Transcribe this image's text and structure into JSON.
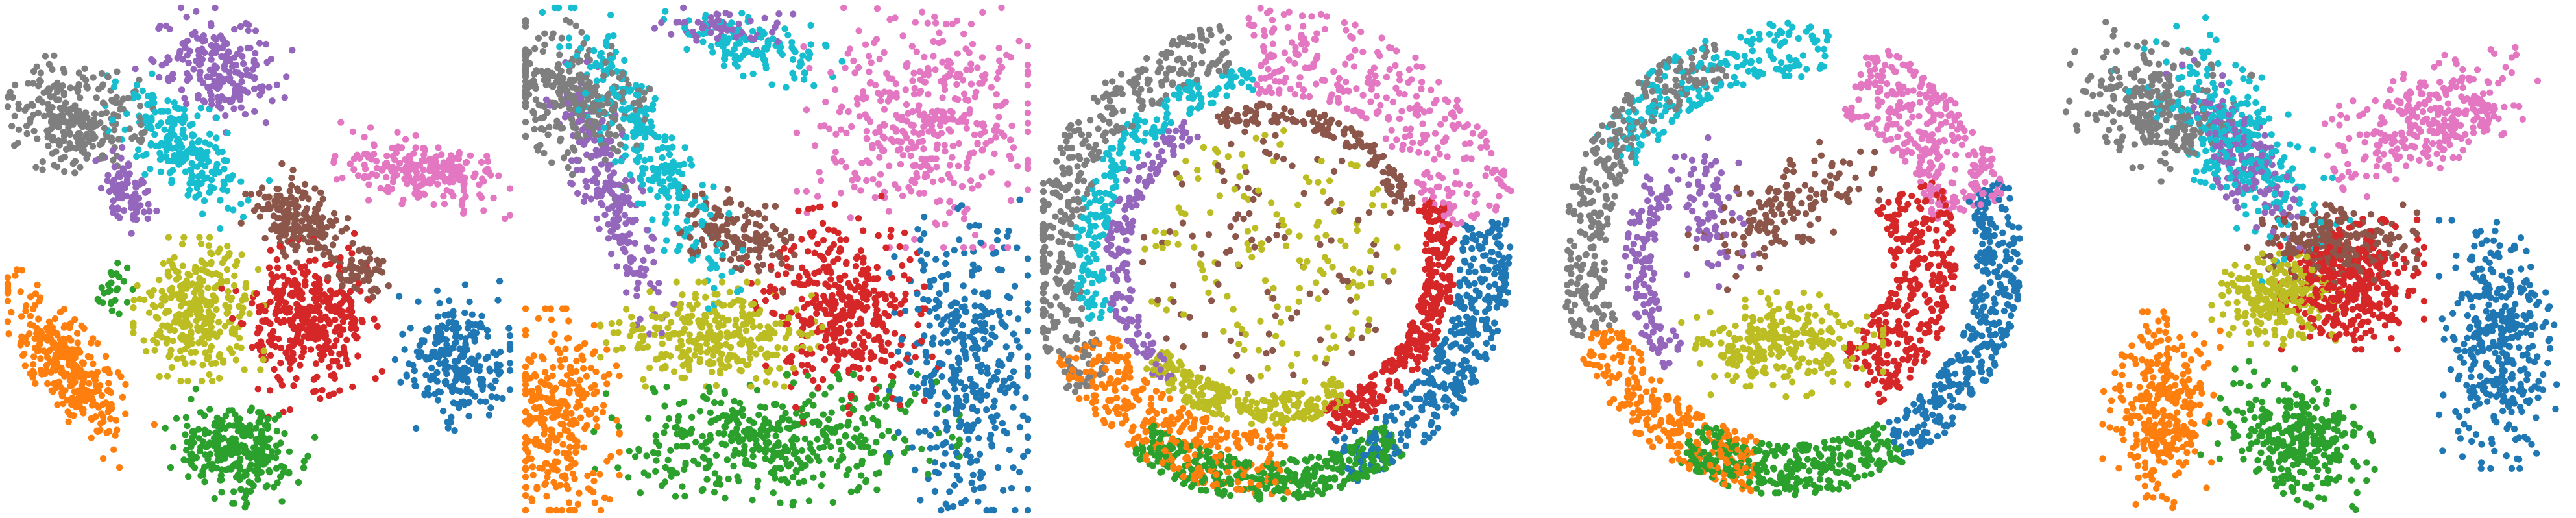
{
  "figure": {
    "description_hidden": ""
  },
  "palette": {
    "c0": "#1f77b4",
    "c1": "#ff7f0e",
    "c2": "#2ca02c",
    "c3": "#d62728",
    "c4": "#9467bd",
    "c5": "#8c564b",
    "c6": "#e377c2",
    "c7": "#7f7f7f",
    "c8": "#bcbd22",
    "c9": "#17becf"
  },
  "chart_data": [
    {
      "type": "scatter",
      "layout": "clusters",
      "xlim": [
        0,
        1
      ],
      "ylim": [
        0,
        1
      ],
      "grid": false,
      "axes_visible": false,
      "legend": "none",
      "clusters": [
        {
          "color_key": "c7",
          "cx": 0.13,
          "cy": 0.78,
          "rx": 0.09,
          "ry": 0.11,
          "angle": 70,
          "n": 260
        },
        {
          "color_key": "c4",
          "cx": 0.42,
          "cy": 0.88,
          "rx": 0.08,
          "ry": 0.11,
          "angle": 60,
          "n": 200
        },
        {
          "color_key": "c9",
          "cx": 0.34,
          "cy": 0.73,
          "rx": 0.07,
          "ry": 0.15,
          "angle": 40,
          "n": 220
        },
        {
          "color_key": "c4",
          "cx": 0.24,
          "cy": 0.63,
          "rx": 0.04,
          "ry": 0.07,
          "angle": 20,
          "n": 80
        },
        {
          "color_key": "c6",
          "cx": 0.83,
          "cy": 0.67,
          "rx": 0.14,
          "ry": 0.055,
          "angle": -10,
          "n": 220
        },
        {
          "color_key": "c5",
          "cx": 0.58,
          "cy": 0.58,
          "rx": 0.09,
          "ry": 0.06,
          "angle": -30,
          "n": 180
        },
        {
          "color_key": "c5",
          "cx": 0.7,
          "cy": 0.47,
          "rx": 0.05,
          "ry": 0.04,
          "angle": 0,
          "n": 60
        },
        {
          "color_key": "c8",
          "cx": 0.38,
          "cy": 0.4,
          "rx": 0.1,
          "ry": 0.11,
          "angle": 0,
          "n": 300
        },
        {
          "color_key": "c3",
          "cx": 0.6,
          "cy": 0.38,
          "rx": 0.11,
          "ry": 0.12,
          "angle": 20,
          "n": 360
        },
        {
          "color_key": "c0",
          "cx": 0.89,
          "cy": 0.3,
          "rx": 0.09,
          "ry": 0.11,
          "angle": 10,
          "n": 240
        },
        {
          "color_key": "c1",
          "cx": 0.12,
          "cy": 0.28,
          "rx": 0.17,
          "ry": 0.06,
          "angle": -55,
          "n": 300
        },
        {
          "color_key": "c2",
          "cx": 0.45,
          "cy": 0.12,
          "rx": 0.11,
          "ry": 0.08,
          "angle": -20,
          "n": 280
        },
        {
          "color_key": "c2",
          "cx": 0.21,
          "cy": 0.44,
          "rx": 0.03,
          "ry": 0.04,
          "angle": 0,
          "n": 25
        }
      ]
    },
    {
      "type": "scatter",
      "layout": "clusters",
      "xlim": [
        0,
        1
      ],
      "ylim": [
        0,
        1
      ],
      "grid": false,
      "axes_visible": false,
      "legend": "none",
      "clusters": [
        {
          "color_key": "c7",
          "cx": 0.09,
          "cy": 0.82,
          "rx": 0.1,
          "ry": 0.14,
          "angle": 60,
          "n": 300
        },
        {
          "color_key": "c9",
          "cx": 0.24,
          "cy": 0.72,
          "rx": 0.06,
          "ry": 0.26,
          "angle": 30,
          "n": 280
        },
        {
          "color_key": "c4",
          "cx": 0.17,
          "cy": 0.62,
          "rx": 0.05,
          "ry": 0.22,
          "angle": 20,
          "n": 200
        },
        {
          "color_key": "c9",
          "cx": 0.45,
          "cy": 0.92,
          "rx": 0.14,
          "ry": 0.05,
          "angle": -10,
          "n": 120
        },
        {
          "color_key": "c4",
          "cx": 0.4,
          "cy": 0.96,
          "rx": 0.12,
          "ry": 0.03,
          "angle": -5,
          "n": 60
        },
        {
          "color_key": "c6",
          "cx": 0.8,
          "cy": 0.77,
          "rx": 0.2,
          "ry": 0.19,
          "angle": 0,
          "n": 420
        },
        {
          "color_key": "c5",
          "cx": 0.42,
          "cy": 0.55,
          "rx": 0.1,
          "ry": 0.06,
          "angle": -20,
          "n": 140
        },
        {
          "color_key": "c8",
          "cx": 0.37,
          "cy": 0.35,
          "rx": 0.17,
          "ry": 0.08,
          "angle": 0,
          "n": 320
        },
        {
          "color_key": "c3",
          "cx": 0.63,
          "cy": 0.4,
          "rx": 0.13,
          "ry": 0.16,
          "angle": 10,
          "n": 380
        },
        {
          "color_key": "c0",
          "cx": 0.88,
          "cy": 0.28,
          "rx": 0.12,
          "ry": 0.26,
          "angle": 0,
          "n": 380
        },
        {
          "color_key": "c1",
          "cx": 0.07,
          "cy": 0.18,
          "rx": 0.09,
          "ry": 0.17,
          "angle": 0,
          "n": 300
        },
        {
          "color_key": "c2",
          "cx": 0.5,
          "cy": 0.14,
          "rx": 0.28,
          "ry": 0.1,
          "angle": 0,
          "n": 420
        }
      ]
    },
    {
      "type": "scatter",
      "layout": "rings",
      "xlim": [
        0,
        1
      ],
      "ylim": [
        0,
        1
      ],
      "grid": false,
      "axes_visible": false,
      "legend": "none",
      "center": [
        0.45,
        0.5
      ],
      "rings": [
        {
          "color_key": "c7",
          "a0": 100,
          "a1": 215,
          "r0": 0.38,
          "r1": 0.48,
          "n": 380
        },
        {
          "color_key": "c9",
          "a0": 95,
          "a1": 200,
          "r0": 0.33,
          "r1": 0.39,
          "n": 220
        },
        {
          "color_key": "c4",
          "a0": 120,
          "a1": 230,
          "r0": 0.28,
          "r1": 0.33,
          "n": 160
        },
        {
          "color_key": "c6",
          "a0": 10,
          "a1": 95,
          "r0": 0.33,
          "r1": 0.5,
          "n": 300
        },
        {
          "color_key": "c5",
          "a0": 20,
          "a1": 110,
          "r0": 0.27,
          "r1": 0.31,
          "n": 140
        },
        {
          "color_key": "c3",
          "a0": 290,
          "a1": 380,
          "r0": 0.31,
          "r1": 0.37,
          "n": 320
        },
        {
          "color_key": "c0",
          "a0": 290,
          "a1": 370,
          "r0": 0.38,
          "r1": 0.48,
          "n": 360
        },
        {
          "color_key": "c1",
          "a0": 205,
          "a1": 275,
          "r0": 0.34,
          "r1": 0.47,
          "n": 320
        },
        {
          "color_key": "c2",
          "a0": 235,
          "a1": 305,
          "r0": 0.4,
          "r1": 0.48,
          "n": 380
        },
        {
          "color_key": "c8",
          "a0": 220,
          "a1": 300,
          "r0": 0.27,
          "r1": 0.33,
          "n": 240
        }
      ],
      "interior": [
        {
          "color_key": "c8",
          "r1": 0.26,
          "n": 150
        },
        {
          "color_key": "c5",
          "r1": 0.26,
          "n": 100
        }
      ]
    },
    {
      "type": "scatter",
      "layout": "rings",
      "xlim": [
        0,
        1
      ],
      "ylim": [
        0,
        1
      ],
      "grid": false,
      "axes_visible": false,
      "legend": "none",
      "center": [
        0.47,
        0.5
      ],
      "rings": [
        {
          "color_key": "c7",
          "a0": 110,
          "a1": 200,
          "r0": 0.38,
          "r1": 0.47,
          "n": 300
        },
        {
          "color_key": "c9",
          "a0": 80,
          "a1": 150,
          "r0": 0.36,
          "r1": 0.47,
          "n": 200
        },
        {
          "color_key": "c4",
          "a0": 150,
          "a1": 220,
          "r0": 0.28,
          "r1": 0.34,
          "n": 120
        },
        {
          "color_key": "c6",
          "a0": 15,
          "a1": 70,
          "r0": 0.3,
          "r1": 0.46,
          "n": 320
        },
        {
          "color_key": "c0",
          "a0": 300,
          "a1": 380,
          "r0": 0.38,
          "r1": 0.47,
          "n": 340
        },
        {
          "color_key": "c3",
          "a0": 300,
          "a1": 390,
          "r0": 0.2,
          "r1": 0.34,
          "n": 320
        },
        {
          "color_key": "c1",
          "a0": 200,
          "a1": 260,
          "r0": 0.36,
          "r1": 0.47,
          "n": 260
        },
        {
          "color_key": "c2",
          "a0": 240,
          "a1": 300,
          "r0": 0.37,
          "r1": 0.47,
          "n": 320
        }
      ],
      "clusters": [
        {
          "color_key": "c8",
          "cx": 0.45,
          "cy": 0.33,
          "rx": 0.16,
          "ry": 0.08,
          "angle": 0,
          "n": 260
        },
        {
          "color_key": "c5",
          "cx": 0.47,
          "cy": 0.6,
          "rx": 0.16,
          "ry": 0.07,
          "angle": 30,
          "n": 140
        },
        {
          "color_key": "c4",
          "cx": 0.3,
          "cy": 0.6,
          "rx": 0.06,
          "ry": 0.12,
          "angle": 10,
          "n": 80
        }
      ]
    },
    {
      "type": "scatter",
      "layout": "clusters",
      "xlim": [
        0,
        1
      ],
      "ylim": [
        0,
        1
      ],
      "grid": false,
      "axes_visible": false,
      "legend": "none",
      "clusters": [
        {
          "color_key": "c7",
          "cx": 0.17,
          "cy": 0.8,
          "rx": 0.1,
          "ry": 0.14,
          "angle": 70,
          "n": 280
        },
        {
          "color_key": "c9",
          "cx": 0.34,
          "cy": 0.73,
          "rx": 0.09,
          "ry": 0.2,
          "angle": 35,
          "n": 300
        },
        {
          "color_key": "c4",
          "cx": 0.35,
          "cy": 0.7,
          "rx": 0.05,
          "ry": 0.17,
          "angle": 30,
          "n": 180
        },
        {
          "color_key": "c6",
          "cx": 0.73,
          "cy": 0.78,
          "rx": 0.17,
          "ry": 0.08,
          "angle": 25,
          "n": 300
        },
        {
          "color_key": "c5",
          "cx": 0.53,
          "cy": 0.53,
          "rx": 0.13,
          "ry": 0.06,
          "angle": 0,
          "n": 260
        },
        {
          "color_key": "c8",
          "cx": 0.42,
          "cy": 0.42,
          "rx": 0.1,
          "ry": 0.07,
          "angle": 0,
          "n": 260
        },
        {
          "color_key": "c3",
          "cx": 0.57,
          "cy": 0.45,
          "rx": 0.11,
          "ry": 0.1,
          "angle": 0,
          "n": 380
        },
        {
          "color_key": "c0",
          "cx": 0.86,
          "cy": 0.33,
          "rx": 0.09,
          "ry": 0.19,
          "angle": 0,
          "n": 360
        },
        {
          "color_key": "c1",
          "cx": 0.19,
          "cy": 0.2,
          "rx": 0.09,
          "ry": 0.15,
          "angle": 0,
          "n": 320
        },
        {
          "color_key": "c2",
          "cx": 0.46,
          "cy": 0.15,
          "rx": 0.13,
          "ry": 0.09,
          "angle": -25,
          "n": 300
        }
      ]
    }
  ]
}
